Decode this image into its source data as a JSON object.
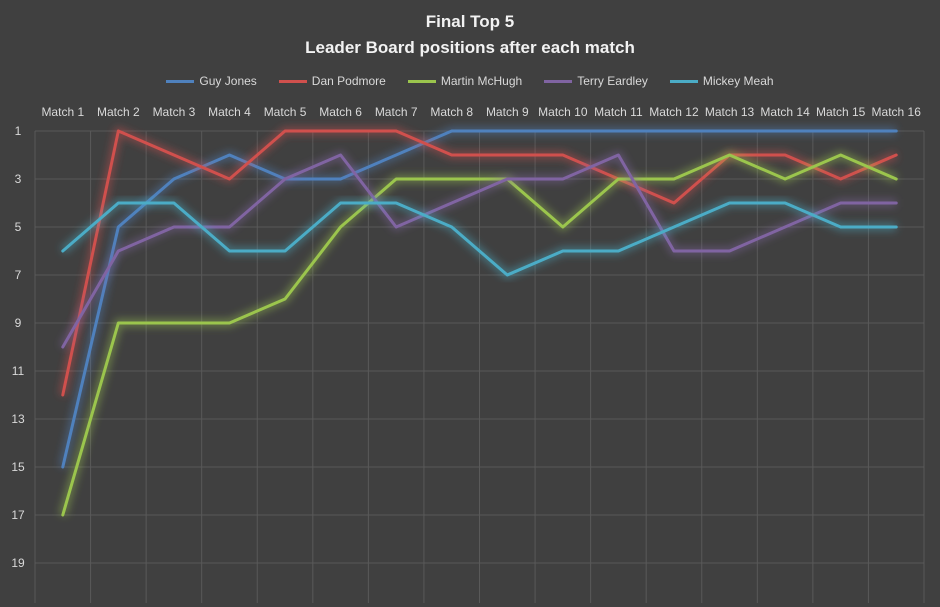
{
  "chart_data": {
    "type": "line",
    "title": "Final Top 5",
    "subtitle": "Leader Board positions after each match",
    "categories": [
      "Match 1",
      "Match 2",
      "Match 3",
      "Match 4",
      "Match 5",
      "Match 6",
      "Match 7",
      "Match 8",
      "Match 9",
      "Match 10",
      "Match 11",
      "Match 12",
      "Match 13",
      "Match 14",
      "Match 15",
      "Match 16"
    ],
    "y_ticks": [
      "1",
      "3",
      "5",
      "7",
      "9",
      "11",
      "13",
      "15",
      "17",
      "19"
    ],
    "ylim": [
      1,
      19
    ],
    "y_reversed": true,
    "grid": true,
    "legend_position": "top",
    "series": [
      {
        "name": "Guy Jones",
        "color": "#4f81bd",
        "values": [
          15,
          5,
          3,
          2,
          3,
          3,
          2,
          1,
          1,
          1,
          1,
          1,
          1,
          1,
          1,
          1
        ]
      },
      {
        "name": "Dan Podmore",
        "color": "#d0504d",
        "values": [
          12,
          1,
          2,
          3,
          1,
          1,
          1,
          2,
          2,
          2,
          3,
          4,
          2,
          2,
          3,
          2
        ]
      },
      {
        "name": "Martin McHugh",
        "color": "#9bc54d",
        "values": [
          17,
          9,
          9,
          9,
          8,
          5,
          3,
          3,
          3,
          5,
          3,
          3,
          2,
          3,
          2,
          3
        ]
      },
      {
        "name": "Terry Eardley",
        "color": "#8064a2",
        "values": [
          10,
          6,
          5,
          5,
          3,
          2,
          5,
          4,
          3,
          3,
          2,
          6,
          6,
          5,
          4,
          4
        ]
      },
      {
        "name": "Mickey Meah",
        "color": "#4bacc6",
        "values": [
          6,
          4,
          4,
          6,
          6,
          4,
          4,
          5,
          7,
          6,
          6,
          5,
          4,
          4,
          5,
          5
        ]
      }
    ]
  }
}
